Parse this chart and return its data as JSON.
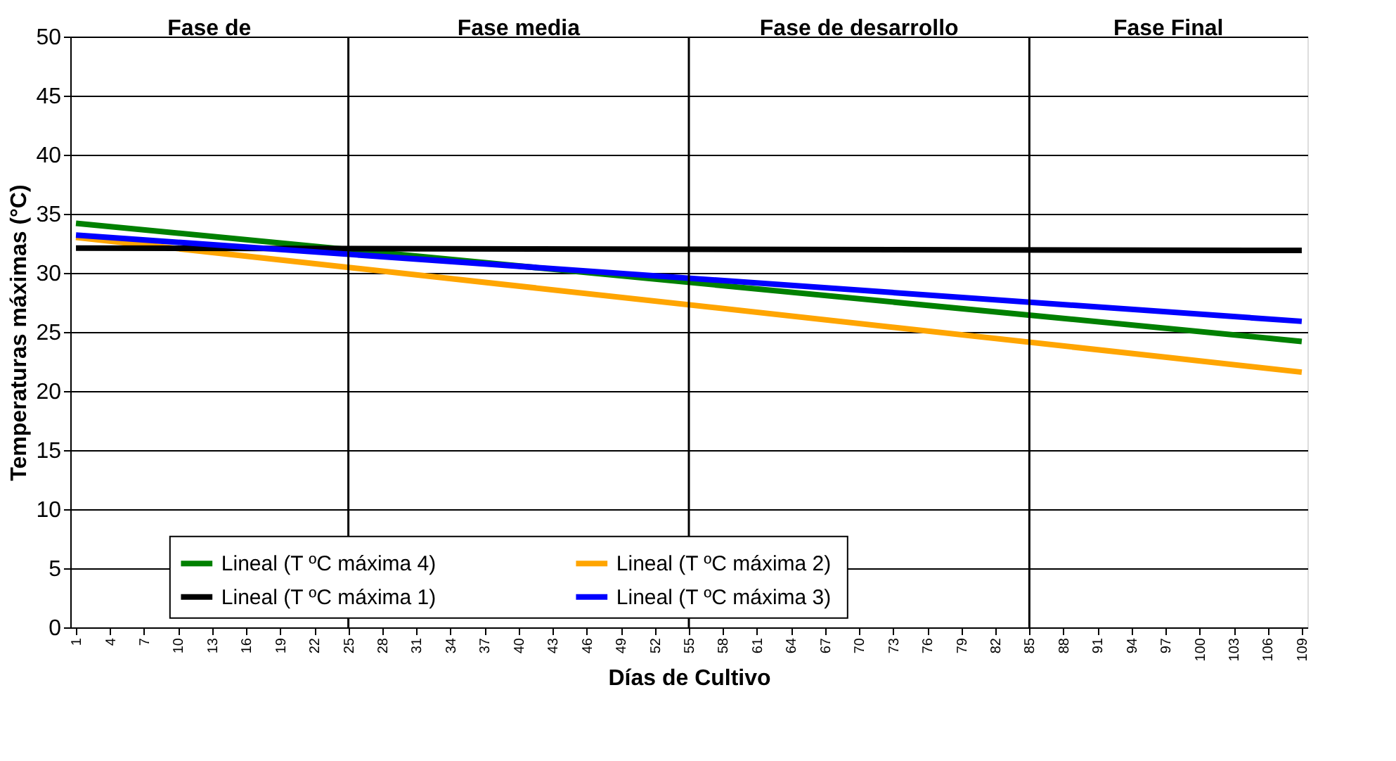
{
  "chart_data": {
    "type": "line",
    "xlabel": "Días de Cultivo",
    "ylabel": "Temperaturas máximas (°C)",
    "x": [
      1,
      109
    ],
    "series": [
      {
        "name": "Lineal (T ºC máxima 4)",
        "color": "#008000",
        "values": [
          34.2,
          24.2
        ]
      },
      {
        "name": "Lineal (T ºC máxima  2)",
        "color": "#ffa500",
        "values": [
          33.0,
          21.6
        ]
      },
      {
        "name": "Lineal (T ºC máxima 1)",
        "color": "#000000",
        "values": [
          32.1,
          31.9
        ]
      },
      {
        "name": "Lineal (T ºC máxima 3)",
        "color": "#0000ff",
        "values": [
          33.2,
          25.9
        ]
      }
    ],
    "xlim": [
      0.5,
      109.5
    ],
    "xticks": [
      1,
      4,
      7,
      10,
      13,
      16,
      19,
      22,
      25,
      28,
      31,
      34,
      37,
      40,
      43,
      46,
      49,
      52,
      55,
      58,
      61,
      64,
      67,
      70,
      73,
      76,
      79,
      82,
      85,
      88,
      91,
      94,
      97,
      100,
      103,
      106,
      109
    ],
    "ylim": [
      0,
      50
    ],
    "yticks": [
      0,
      5,
      10,
      15,
      20,
      25,
      30,
      35,
      40,
      45,
      50
    ],
    "ref_lines": [
      {
        "axis": "x",
        "value": 25,
        "color": "#000000"
      },
      {
        "axis": "x",
        "value": 55,
        "color": "#000000"
      },
      {
        "axis": "x",
        "value": 85,
        "color": "#000000"
      }
    ],
    "annotations": [
      "Fase de",
      "Fase media",
      "Fase de desarrollo",
      "Fase Final"
    ],
    "grid": "y",
    "legend": "bottom",
    "marker": "none",
    "line_style": "solid"
  }
}
